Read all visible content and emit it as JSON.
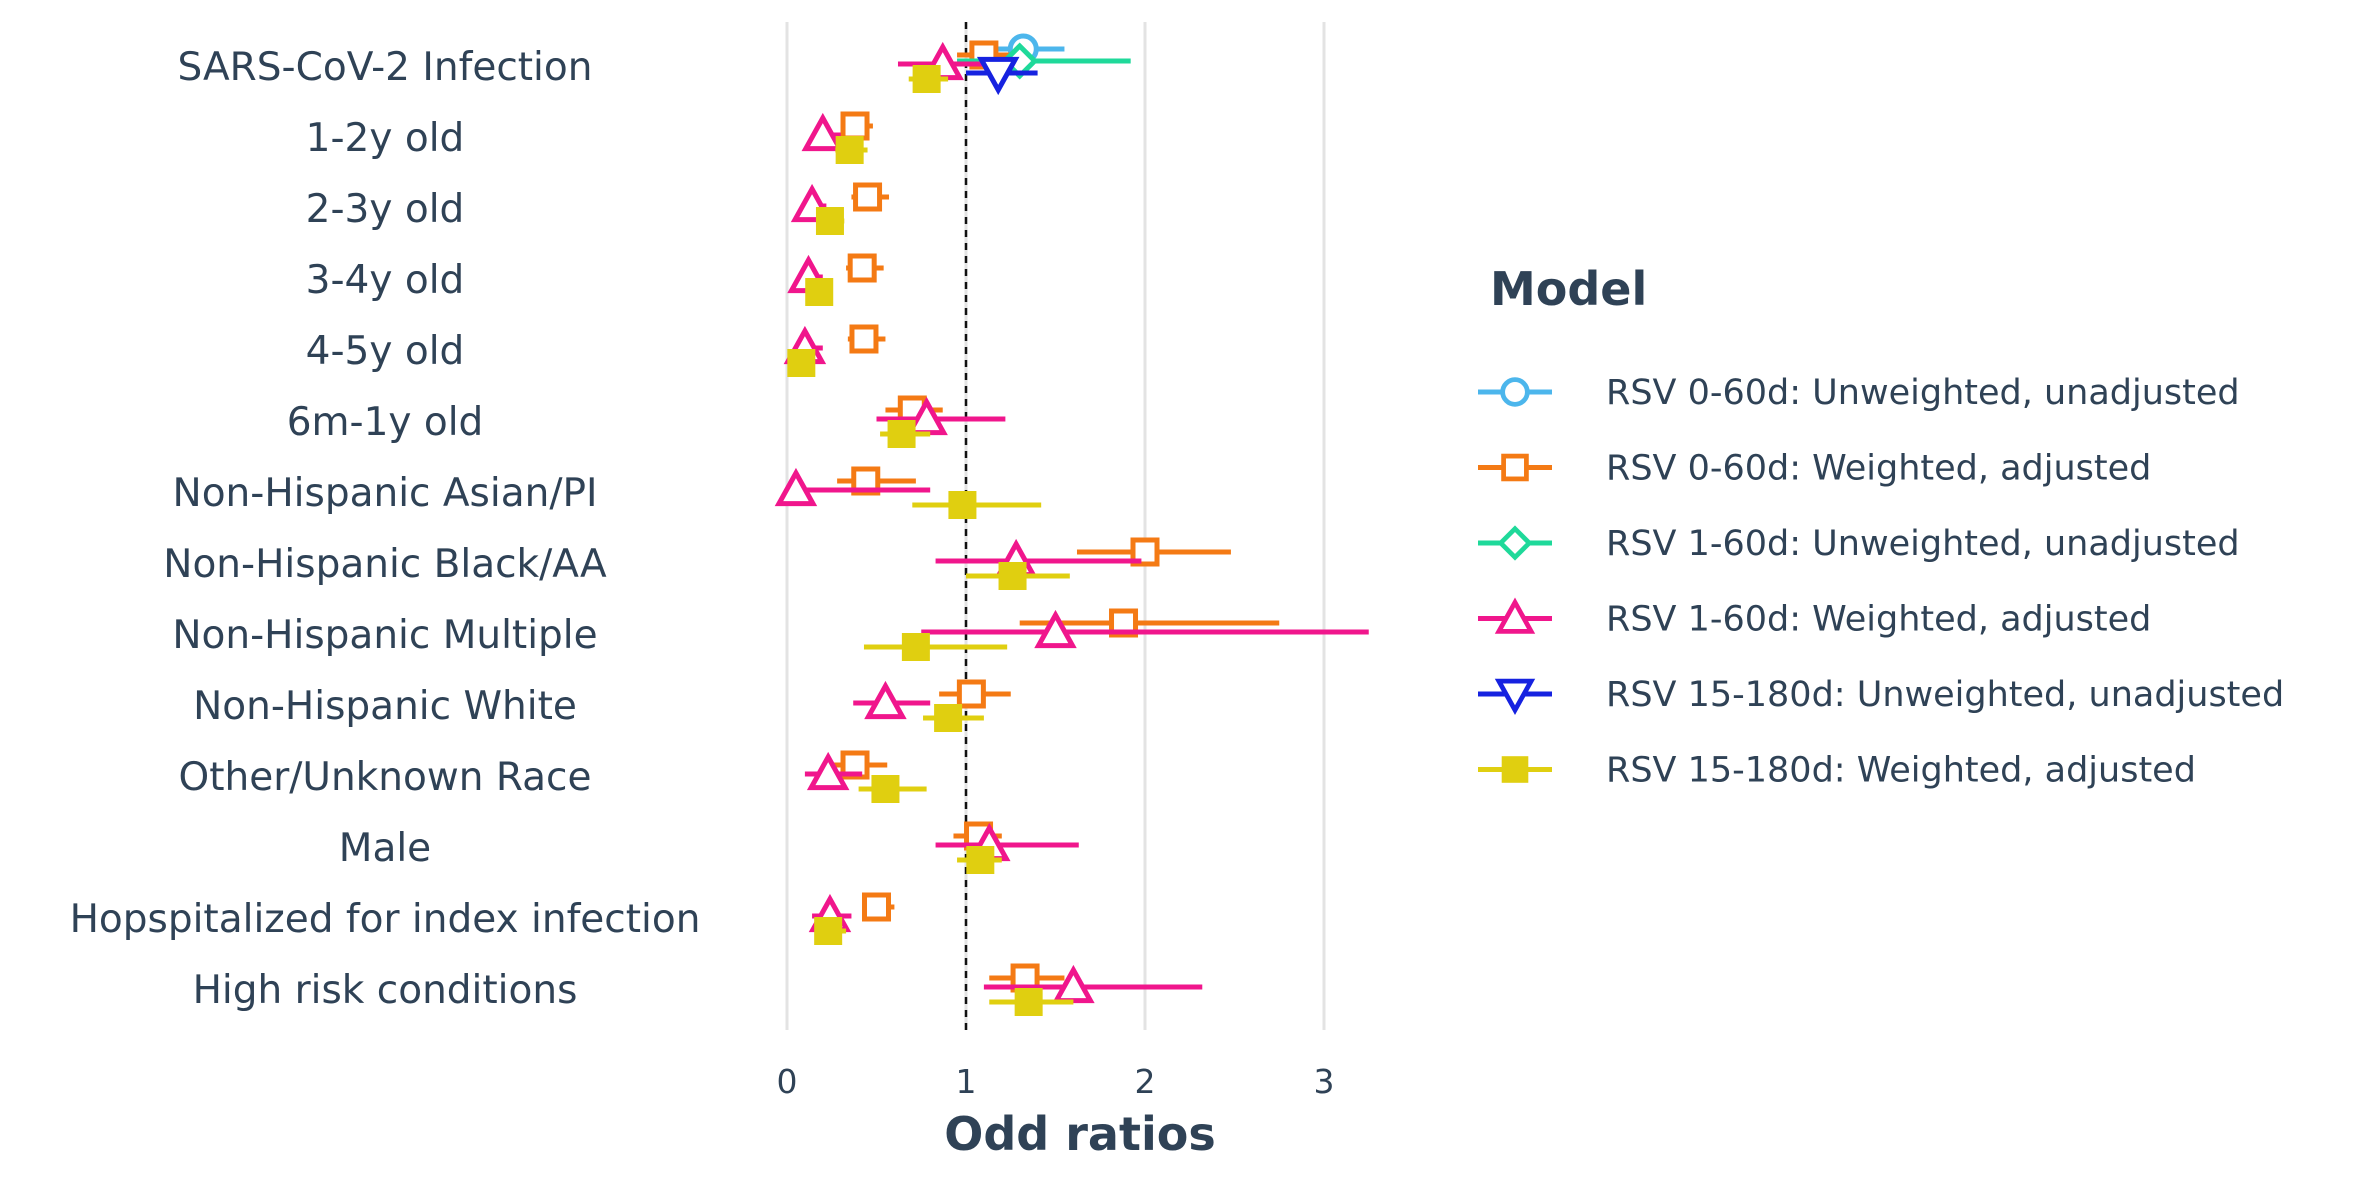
{
  "chart_data": {
    "type": "forest",
    "xlabel": "Odd ratios",
    "xlim": [
      -0.1,
      3.5
    ],
    "x_ticks": [
      0,
      1,
      2,
      3
    ],
    "reference_line": 1,
    "grid": "vertical major",
    "legend": {
      "title": "Model",
      "placement": "right"
    },
    "categories": [
      "SARS-CoV-2 Infection",
      "1-2y old",
      "2-3y old",
      "3-4y old",
      "4-5y old",
      "6m-1y old",
      "Non-Hispanic Asian/PI",
      "Non-Hispanic Black/AA",
      "Non-Hispanic Multiple",
      "Non-Hispanic White",
      "Other/Unknown Race",
      "Male",
      "Hopspitalized for index infection",
      "High risk conditions"
    ],
    "series": [
      {
        "name": "RSV 0-60d: Unweighted, unadjusted",
        "color": "#4cb6ec",
        "marker": "circle-open",
        "points": [
          {
            "category": "SARS-CoV-2 Infection",
            "or": 1.32,
            "lo": 1.1,
            "hi": 1.55
          }
        ]
      },
      {
        "name": "RSV 0-60d: Weighted, adjusted",
        "color": "#f47a14",
        "marker": "square-open",
        "points": [
          {
            "category": "SARS-CoV-2 Infection",
            "or": 1.1,
            "lo": 0.95,
            "hi": 1.25
          },
          {
            "category": "1-2y old",
            "or": 0.38,
            "lo": 0.3,
            "hi": 0.48
          },
          {
            "category": "2-3y old",
            "or": 0.45,
            "lo": 0.36,
            "hi": 0.57
          },
          {
            "category": "3-4y old",
            "or": 0.42,
            "lo": 0.33,
            "hi": 0.54
          },
          {
            "category": "4-5y old",
            "or": 0.43,
            "lo": 0.34,
            "hi": 0.55
          },
          {
            "category": "6m-1y old",
            "or": 0.7,
            "lo": 0.55,
            "hi": 0.87
          },
          {
            "category": "Non-Hispanic Asian/PI",
            "or": 0.44,
            "lo": 0.28,
            "hi": 0.72
          },
          {
            "category": "Non-Hispanic Black/AA",
            "or": 2.0,
            "lo": 1.62,
            "hi": 2.48
          },
          {
            "category": "Non-Hispanic Multiple",
            "or": 1.88,
            "lo": 1.3,
            "hi": 2.75
          },
          {
            "category": "Non-Hispanic White",
            "or": 1.03,
            "lo": 0.85,
            "hi": 1.25
          },
          {
            "category": "Other/Unknown Race",
            "or": 0.38,
            "lo": 0.25,
            "hi": 0.56
          },
          {
            "category": "Male",
            "or": 1.07,
            "lo": 0.93,
            "hi": 1.2
          },
          {
            "category": "Hopspitalized for index infection",
            "or": 0.5,
            "lo": 0.42,
            "hi": 0.6
          },
          {
            "category": "High risk conditions",
            "or": 1.33,
            "lo": 1.13,
            "hi": 1.55
          }
        ]
      },
      {
        "name": "RSV 1-60d: Unweighted, unadjusted",
        "color": "#1fd99a",
        "marker": "diamond-open",
        "points": [
          {
            "category": "SARS-CoV-2 Infection",
            "or": 1.3,
            "lo": 0.95,
            "hi": 1.92
          }
        ]
      },
      {
        "name": "RSV 1-60d: Weighted, adjusted",
        "color": "#f0168c",
        "marker": "triangle-up-open",
        "points": [
          {
            "category": "SARS-CoV-2 Infection",
            "or": 0.87,
            "lo": 0.62,
            "hi": 1.2
          },
          {
            "category": "1-2y old",
            "or": 0.2,
            "lo": 0.14,
            "hi": 0.3
          },
          {
            "category": "2-3y old",
            "or": 0.14,
            "lo": 0.09,
            "hi": 0.22
          },
          {
            "category": "3-4y old",
            "or": 0.12,
            "lo": 0.08,
            "hi": 0.2
          },
          {
            "category": "4-5y old",
            "or": 0.1,
            "lo": 0.05,
            "hi": 0.2
          },
          {
            "category": "6m-1y old",
            "or": 0.78,
            "lo": 0.5,
            "hi": 1.22
          },
          {
            "category": "Non-Hispanic Asian/PI",
            "or": 0.05,
            "lo": 0.0,
            "hi": 0.8
          },
          {
            "category": "Non-Hispanic Black/AA",
            "or": 1.28,
            "lo": 0.83,
            "hi": 1.98
          },
          {
            "category": "Non-Hispanic Multiple",
            "or": 1.5,
            "lo": 0.75,
            "hi": 3.25
          },
          {
            "category": "Non-Hispanic White",
            "or": 0.55,
            "lo": 0.37,
            "hi": 0.8
          },
          {
            "category": "Other/Unknown Race",
            "or": 0.23,
            "lo": 0.1,
            "hi": 0.42
          },
          {
            "category": "Male",
            "or": 1.13,
            "lo": 0.83,
            "hi": 1.63
          },
          {
            "category": "Hopspitalized for index infection",
            "or": 0.24,
            "lo": 0.14,
            "hi": 0.36
          },
          {
            "category": "High risk conditions",
            "or": 1.6,
            "lo": 1.1,
            "hi": 2.32
          }
        ]
      },
      {
        "name": "RSV 15-180d: Unweighted, unadjusted",
        "color": "#1622e0",
        "marker": "triangle-down-open",
        "points": [
          {
            "category": "SARS-CoV-2 Infection",
            "or": 1.18,
            "lo": 1.0,
            "hi": 1.4
          }
        ]
      },
      {
        "name": "RSV 15-180d: Weighted, adjusted",
        "color": "#e0cf10",
        "marker": "square-filled",
        "points": [
          {
            "category": "SARS-CoV-2 Infection",
            "or": 0.78,
            "lo": 0.68,
            "hi": 0.9
          },
          {
            "category": "1-2y old",
            "or": 0.35,
            "lo": 0.27,
            "hi": 0.45
          },
          {
            "category": "2-3y old",
            "or": 0.24,
            "lo": 0.18,
            "hi": 0.32
          },
          {
            "category": "3-4y old",
            "or": 0.18,
            "lo": 0.13,
            "hi": 0.25
          },
          {
            "category": "4-5y old",
            "or": 0.08,
            "lo": 0.05,
            "hi": 0.12
          },
          {
            "category": "6m-1y old",
            "or": 0.64,
            "lo": 0.52,
            "hi": 0.8
          },
          {
            "category": "Non-Hispanic Asian/PI",
            "or": 0.98,
            "lo": 0.7,
            "hi": 1.42
          },
          {
            "category": "Non-Hispanic Black/AA",
            "or": 1.26,
            "lo": 1.0,
            "hi": 1.58
          },
          {
            "category": "Non-Hispanic Multiple",
            "or": 0.72,
            "lo": 0.43,
            "hi": 1.23
          },
          {
            "category": "Non-Hispanic White",
            "or": 0.9,
            "lo": 0.76,
            "hi": 1.1
          },
          {
            "category": "Other/Unknown Race",
            "or": 0.55,
            "lo": 0.4,
            "hi": 0.78
          },
          {
            "category": "Male",
            "or": 1.08,
            "lo": 0.95,
            "hi": 1.2
          },
          {
            "category": "Hopspitalized for index infection",
            "or": 0.23,
            "lo": 0.16,
            "hi": 0.33
          },
          {
            "category": "High risk conditions",
            "or": 1.35,
            "lo": 1.13,
            "hi": 1.6
          }
        ]
      }
    ]
  }
}
